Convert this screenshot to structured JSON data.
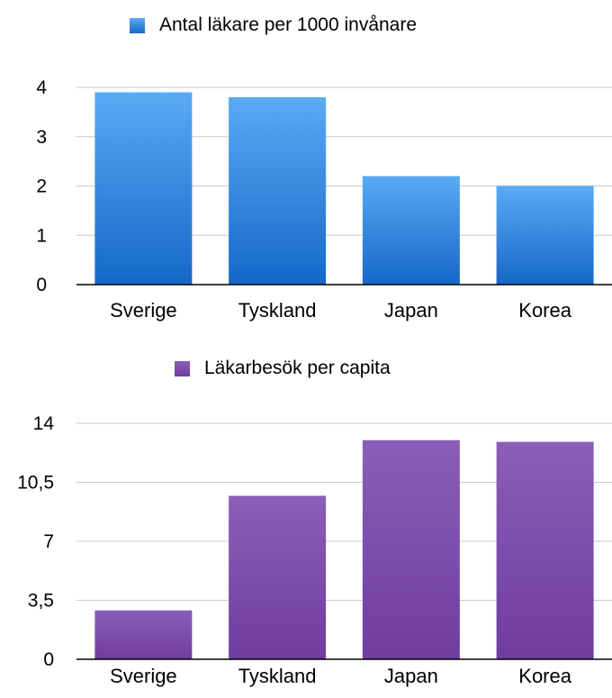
{
  "chart_data": [
    {
      "type": "bar",
      "categories": [
        "Sverige",
        "Tyskland",
        "Japan",
        "Korea"
      ],
      "series": [
        {
          "name": "Antal läkare per 1000 invånare",
          "values": [
            3.9,
            3.8,
            2.2,
            2.0
          ]
        }
      ],
      "yticks": [
        "0",
        "1",
        "2",
        "3",
        "4"
      ],
      "ylim": [
        0,
        4
      ],
      "grid": true,
      "legend": "top-center",
      "color_top": "#5aaaf5",
      "color_bottom": "#1568c8"
    },
    {
      "type": "bar",
      "categories": [
        "Sverige",
        "Tyskland",
        "Japan",
        "Korea"
      ],
      "series": [
        {
          "name": "Läkarbesök per capita",
          "values": [
            2.9,
            9.7,
            13.0,
            12.9
          ]
        }
      ],
      "yticks": [
        "0",
        "3,5",
        "7",
        "10,5",
        "14"
      ],
      "ylim": [
        0,
        14
      ],
      "grid": true,
      "legend": "top-center",
      "color_top": "#8b5eb8",
      "color_bottom": "#6f3d9e"
    }
  ]
}
